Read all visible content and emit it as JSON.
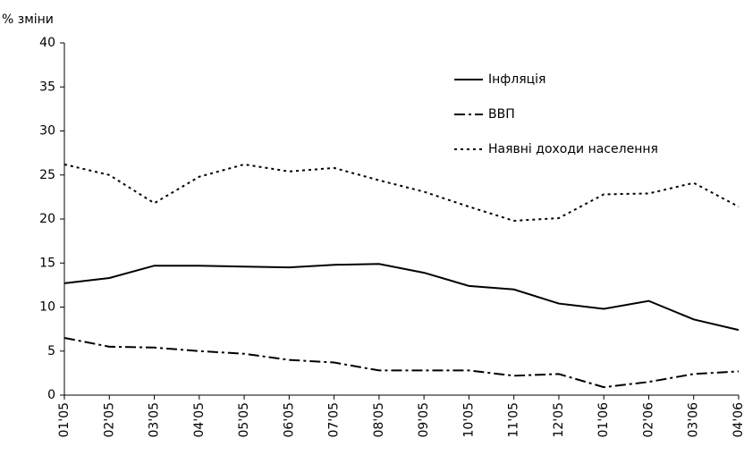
{
  "chart_data": {
    "type": "line",
    "y_label": "% зміни",
    "categories": [
      "01'05",
      "02'05",
      "03'05",
      "04'05",
      "05'05",
      "06'05",
      "07'05",
      "08'05",
      "09'05",
      "10'05",
      "11'05",
      "12'05",
      "01'06",
      "02'06",
      "03'06",
      "04'06"
    ],
    "series": [
      {
        "name": "Інфляція",
        "color": "#000000",
        "dash": "solid",
        "values": [
          12.7,
          13.3,
          14.7,
          14.7,
          14.6,
          14.5,
          14.8,
          14.9,
          13.9,
          12.4,
          12.0,
          10.4,
          9.8,
          10.7,
          8.6,
          7.4
        ]
      },
      {
        "name": "ВВП",
        "color": "#000000",
        "dash": "dashdot",
        "values": [
          6.5,
          5.5,
          5.4,
          5.0,
          4.7,
          4.0,
          3.7,
          2.8,
          2.8,
          2.8,
          2.2,
          2.4,
          0.9,
          1.5,
          2.4,
          2.7
        ]
      },
      {
        "name": "Наявні доходи населення",
        "color": "#000000",
        "dash": "dot",
        "values": [
          26.2,
          25.0,
          21.8,
          24.8,
          26.2,
          25.4,
          25.8,
          24.4,
          23.1,
          21.4,
          19.8,
          20.1,
          22.8,
          22.9,
          24.1,
          21.4
        ]
      }
    ],
    "ylim": [
      0,
      40
    ],
    "yticks": [
      0,
      5,
      10,
      15,
      20,
      25,
      30,
      35,
      40
    ],
    "grid": false,
    "legend": "top-right"
  }
}
